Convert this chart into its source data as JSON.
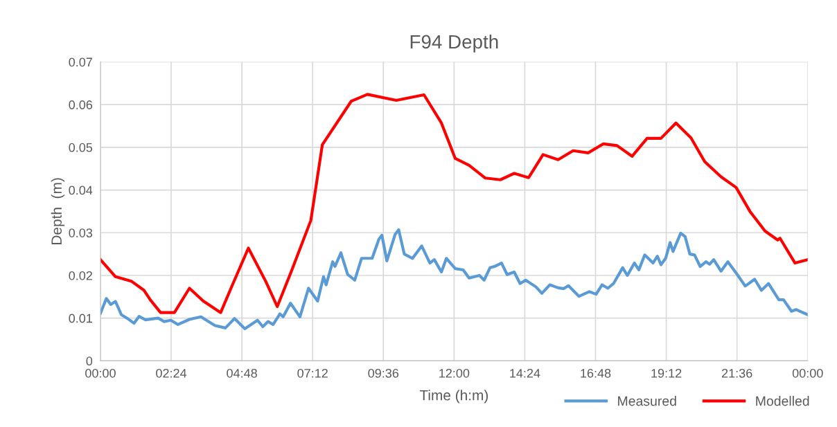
{
  "chart_data": {
    "type": "line",
    "title": "F94 Depth",
    "xlabel": "Time (h:m)",
    "ylabel": "Depth  (m)",
    "xlim": [
      0,
      24
    ],
    "xticks": [
      {
        "value": 0,
        "label": "00:00"
      },
      {
        "value": 2.4,
        "label": "02:24"
      },
      {
        "value": 4.8,
        "label": "04:48"
      },
      {
        "value": 7.2,
        "label": "07:12"
      },
      {
        "value": 9.6,
        "label": "09:36"
      },
      {
        "value": 12,
        "label": "12:00"
      },
      {
        "value": 14.4,
        "label": "14:24"
      },
      {
        "value": 16.8,
        "label": "16:48"
      },
      {
        "value": 19.2,
        "label": "19:12"
      },
      {
        "value": 21.6,
        "label": "21:36"
      },
      {
        "value": 24,
        "label": "00:00"
      }
    ],
    "ylim": [
      0,
      0.07
    ],
    "yticks": [
      0,
      0.01,
      0.02,
      0.03,
      0.04,
      0.05,
      0.06,
      0.07
    ],
    "grid": true,
    "legend": "bottom right",
    "marker": "none",
    "line_style": "solid",
    "series": [
      {
        "name": "Measured",
        "color": "#5b9bd5",
        "x": [
          0,
          0.2,
          0.35,
          0.51,
          0.71,
          0.9,
          1.14,
          1.31,
          1.53,
          1.96,
          2.16,
          2.39,
          2.63,
          3.02,
          3.41,
          3.88,
          4.24,
          4.55,
          4.9,
          5.33,
          5.51,
          5.69,
          5.86,
          6.09,
          6.2,
          6.45,
          6.77,
          7.06,
          7.37,
          7.57,
          7.66,
          7.88,
          7.96,
          8.16,
          8.39,
          8.63,
          8.86,
          9.22,
          9.45,
          9.55,
          9.72,
          10.0,
          10.12,
          10.31,
          10.59,
          10.9,
          11.18,
          11.33,
          11.57,
          11.74,
          12.04,
          12.31,
          12.51,
          12.86,
          13.02,
          13.22,
          13.37,
          13.61,
          13.8,
          14.04,
          14.24,
          14.43,
          14.78,
          14.98,
          15.25,
          15.53,
          15.72,
          15.88,
          16.24,
          16.59,
          16.82,
          17.02,
          17.22,
          17.41,
          17.72,
          17.88,
          18.12,
          18.27,
          18.47,
          18.75,
          18.9,
          19.02,
          19.18,
          19.33,
          19.43,
          19.69,
          19.84,
          20.0,
          20.16,
          20.35,
          20.55,
          20.67,
          20.81,
          21.06,
          21.29,
          21.61,
          21.88,
          22.2,
          22.43,
          22.67,
          23.02,
          23.18,
          23.45,
          23.61,
          24
        ],
        "values": [
          0.0111,
          0.0146,
          0.0132,
          0.0139,
          0.0108,
          0.01,
          0.0088,
          0.0104,
          0.0096,
          0.01,
          0.0092,
          0.0095,
          0.0085,
          0.0097,
          0.0103,
          0.0083,
          0.0077,
          0.0099,
          0.0075,
          0.0095,
          0.008,
          0.0092,
          0.0085,
          0.011,
          0.0103,
          0.0135,
          0.0103,
          0.017,
          0.014,
          0.0197,
          0.0178,
          0.0232,
          0.0221,
          0.0253,
          0.0202,
          0.0189,
          0.024,
          0.024,
          0.0285,
          0.0294,
          0.0234,
          0.0296,
          0.0307,
          0.025,
          0.024,
          0.0269,
          0.0229,
          0.0237,
          0.0208,
          0.024,
          0.0216,
          0.0213,
          0.0194,
          0.02,
          0.0189,
          0.0218,
          0.0221,
          0.0229,
          0.0202,
          0.0208,
          0.0181,
          0.0189,
          0.0173,
          0.0158,
          0.0178,
          0.0171,
          0.0169,
          0.0176,
          0.0151,
          0.0162,
          0.0156,
          0.0178,
          0.017,
          0.0181,
          0.0218,
          0.02,
          0.0229,
          0.0213,
          0.0248,
          0.0229,
          0.0245,
          0.0225,
          0.024,
          0.0277,
          0.0256,
          0.0299,
          0.0291,
          0.025,
          0.0248,
          0.0221,
          0.0232,
          0.0226,
          0.0237,
          0.021,
          0.0232,
          0.0202,
          0.0175,
          0.0191,
          0.0165,
          0.0181,
          0.0143,
          0.0143,
          0.0116,
          0.012,
          0.0108
        ]
      },
      {
        "name": "Modelled",
        "color": "#ff0000",
        "x": [
          0,
          0.51,
          1.06,
          1.48,
          1.69,
          2.04,
          2.51,
          3.02,
          3.49,
          4.08,
          4.43,
          5.02,
          5.61,
          6.0,
          6.47,
          7.14,
          7.53,
          8.51,
          9.06,
          10.04,
          10.98,
          11.57,
          12.04,
          12.51,
          13.06,
          13.57,
          14.04,
          14.53,
          15.02,
          15.53,
          16.04,
          16.55,
          17.06,
          17.53,
          18.04,
          18.55,
          19.02,
          19.53,
          20.04,
          20.51,
          21.06,
          21.57,
          22.04,
          22.55,
          22.98,
          23.06,
          23.57,
          24
        ],
        "values": [
          0.0237,
          0.0197,
          0.0186,
          0.0165,
          0.0143,
          0.0113,
          0.0113,
          0.017,
          0.014,
          0.0113,
          0.017,
          0.0264,
          0.0186,
          0.0127,
          0.0208,
          0.0329,
          0.0506,
          0.0608,
          0.0624,
          0.061,
          0.0623,
          0.0557,
          0.0474,
          0.0458,
          0.0428,
          0.0424,
          0.0439,
          0.0429,
          0.0483,
          0.0471,
          0.0492,
          0.0487,
          0.0508,
          0.0504,
          0.0479,
          0.0521,
          0.0521,
          0.0557,
          0.0522,
          0.0466,
          0.0431,
          0.0406,
          0.035,
          0.0304,
          0.0283,
          0.0287,
          0.0229,
          0.0237
        ]
      }
    ]
  }
}
